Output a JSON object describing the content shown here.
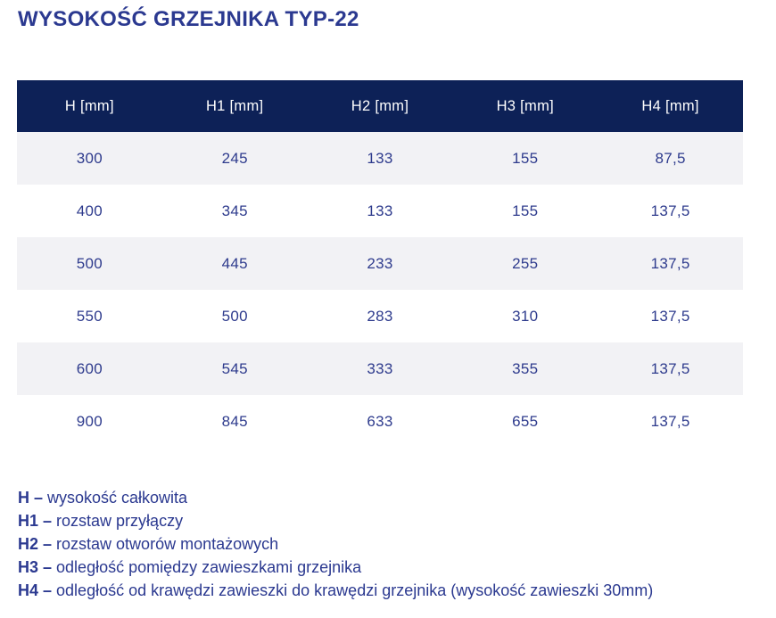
{
  "page": {
    "title": "WYSOKOŚĆ GRZEJNIKA TYP-22",
    "colors": {
      "title_blue": "#2b3990",
      "header_bg": "#0d2157",
      "header_text": "#ffffff",
      "cell_text": "#2e3b8d",
      "row_alt_bg": "#f2f2f5",
      "row_bg": "#ffffff"
    }
  },
  "table": {
    "columns": [
      "H [mm]",
      "H1 [mm]",
      "H2 [mm]",
      "H3 [mm]",
      "H4 [mm]"
    ],
    "rows": [
      [
        "300",
        "245",
        "133",
        "155",
        "87,5"
      ],
      [
        "400",
        "345",
        "133",
        "155",
        "137,5"
      ],
      [
        "500",
        "445",
        "233",
        "255",
        "137,5"
      ],
      [
        "550",
        "500",
        "283",
        "310",
        "137,5"
      ],
      [
        "600",
        "545",
        "333",
        "355",
        "137,5"
      ],
      [
        "900",
        "845",
        "633",
        "655",
        "137,5"
      ]
    ]
  },
  "legend": [
    {
      "term": "H –",
      "description": "wysokość całkowita"
    },
    {
      "term": "H1 –",
      "description": "rozstaw przyłączy"
    },
    {
      "term": "H2 –",
      "description": "rozstaw otworów montażowych"
    },
    {
      "term": "H3 –",
      "description": "odległość pomiędzy zawieszkami grzejnika"
    },
    {
      "term": "H4 –",
      "description": "odległość od krawędzi zawieszki do krawędzi grzejnika (wysokość zawieszki 30mm)"
    }
  ]
}
